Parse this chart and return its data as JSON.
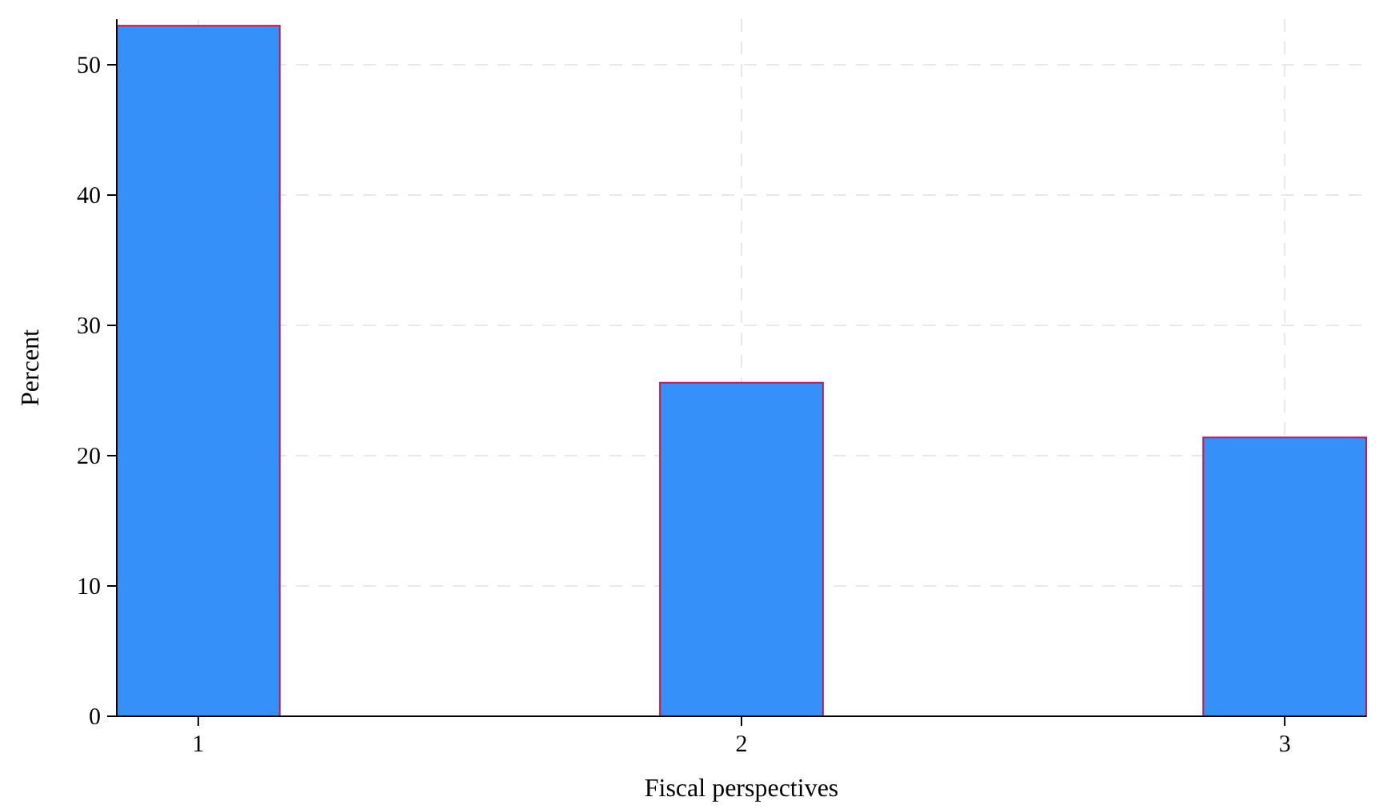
{
  "chart_data": {
    "type": "bar",
    "xlabel": "Fiscal perspectives",
    "ylabel": "Percent",
    "x": [
      1,
      2,
      3
    ],
    "values": [
      53.0,
      25.6,
      21.4
    ],
    "color": "#3690fa",
    "xlim": [
      0.85,
      3.15
    ],
    "xticks": [
      1,
      2,
      3
    ],
    "ylim": [
      0,
      53.5
    ],
    "yticks": [
      0,
      10,
      20,
      30,
      40,
      50
    ],
    "grid": true
  }
}
